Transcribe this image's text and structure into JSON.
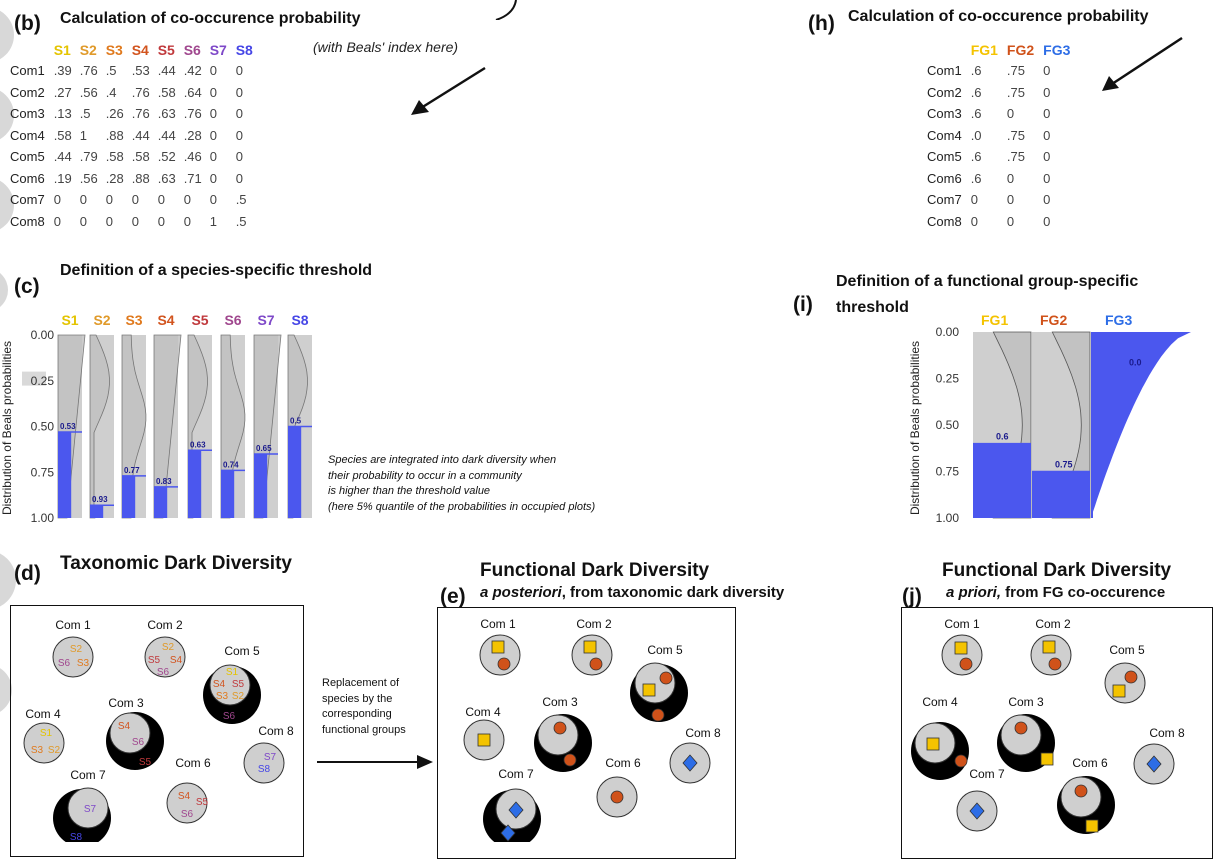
{
  "colors": {
    "S1": "#e4c400",
    "S2": "#e09a2a",
    "S3": "#e07a1e",
    "S4": "#d2541e",
    "S5": "#c0393c",
    "S6": "#a0478e",
    "S7": "#7e48c8",
    "S8": "#4646e6",
    "FG1": "#f4c300",
    "FG2": "#d0521a",
    "FG3": "#2d6de6",
    "dark": "#000000",
    "pool": "#cfcfcf",
    "blue": "#4b57ee"
  },
  "panel_b": {
    "label": "(b)",
    "title": "Calculation of co-occurence probability",
    "subtitle": "(with Beals' index here)",
    "species": [
      "S1",
      "S2",
      "S3",
      "S4",
      "S5",
      "S6",
      "S7",
      "S8"
    ],
    "rows": [
      {
        "name": "Com1",
        "values": [
          ".39",
          ".76",
          ".5",
          ".53",
          ".44",
          ".42",
          "0",
          "0"
        ]
      },
      {
        "name": "Com2",
        "values": [
          ".27",
          ".56",
          ".4",
          ".76",
          ".58",
          ".64",
          "0",
          "0"
        ]
      },
      {
        "name": "Com3",
        "values": [
          ".13",
          ".5",
          ".26",
          ".76",
          ".63",
          ".76",
          "0",
          "0"
        ]
      },
      {
        "name": "Com4",
        "values": [
          ".58",
          "1",
          ".88",
          ".44",
          ".44",
          ".28",
          "0",
          "0"
        ]
      },
      {
        "name": "Com5",
        "values": [
          ".44",
          ".79",
          ".58",
          ".58",
          ".52",
          ".46",
          "0",
          "0"
        ]
      },
      {
        "name": "Com6",
        "values": [
          ".19",
          ".56",
          ".28",
          ".88",
          ".63",
          ".71",
          "0",
          "0"
        ]
      },
      {
        "name": "Com7",
        "values": [
          "0",
          "0",
          "0",
          "0",
          "0",
          "0",
          "0",
          ".5"
        ]
      },
      {
        "name": "Com8",
        "values": [
          "0",
          "0",
          "0",
          "0",
          "0",
          "0",
          "1",
          ".5"
        ]
      }
    ]
  },
  "panel_h": {
    "label": "(h)",
    "title": "Calculation of co-occurence probability",
    "groups": [
      "FG1",
      "FG2",
      "FG3"
    ],
    "rows": [
      {
        "name": "Com1",
        "values": [
          ".6",
          ".75",
          "0"
        ]
      },
      {
        "name": "Com2",
        "values": [
          ".6",
          ".75",
          "0"
        ]
      },
      {
        "name": "Com3",
        "values": [
          ".6",
          "0",
          "0"
        ]
      },
      {
        "name": "Com4",
        "values": [
          ".0",
          ".75",
          "0"
        ]
      },
      {
        "name": "Com5",
        "values": [
          ".6",
          ".75",
          "0"
        ]
      },
      {
        "name": "Com6",
        "values": [
          ".6",
          "0",
          "0"
        ]
      },
      {
        "name": "Com7",
        "values": [
          "0",
          "0",
          "0"
        ]
      },
      {
        "name": "Com8",
        "values": [
          "0",
          "0",
          "0"
        ]
      }
    ]
  },
  "panel_c": {
    "label": "(c)",
    "title": "Definition of a species-specific threshold",
    "ylabel": "Distribution of Beals probabilities",
    "ticks": [
      "0.00",
      "0.25",
      "0.50",
      "0.75",
      "1.00"
    ],
    "thresholds": [
      0.53,
      0.93,
      0.77,
      0.83,
      0.63,
      0.74,
      0.65,
      0.5
    ],
    "threshold_labels": [
      "0.53",
      "0.93",
      "0.77",
      "0.83",
      "0.63",
      "0.74",
      "0.65",
      "0.5"
    ],
    "note": [
      "Species are integrated into dark diversity when",
      "their probability to occur in a community",
      "is higher than the threshold value",
      "(here 5% quantile of the probabilities in occupied plots)"
    ]
  },
  "panel_i": {
    "label": "(i)",
    "title_line1": "Definition of a functional group-specific",
    "title_line2": "threshold",
    "ylabel": "Distribution of Beals probabilities",
    "ticks": [
      "0.00",
      "0.25",
      "0.50",
      "0.75",
      "1.00"
    ],
    "thresholds": [
      0.6,
      0.75,
      0.0
    ],
    "threshold_labels": [
      "0.6",
      "0.75",
      "0.0"
    ]
  },
  "panel_d": {
    "label": "(d)",
    "title": "Taxonomic Dark Diversity"
  },
  "panel_e": {
    "label": "(e)",
    "title": "Functional Dark Diversity",
    "subtitle_em": "a posteriori",
    "subtitle_rest": ", from taxonomic dark diversity"
  },
  "panel_j": {
    "label": "(j)",
    "title": "Functional Dark Diversity",
    "subtitle_em": "a priori,",
    "subtitle_rest": " from FG co-occurence"
  },
  "arrow_text": [
    "Replacement of",
    "species by the",
    "corresponding",
    "functional groups"
  ],
  "com_labels": {
    "c1": "Com 1",
    "c2": "Com 2",
    "c3": "Com 3",
    "c4": "Com 4",
    "c5": "Com 5",
    "c6": "Com 6",
    "c7": "Com 7",
    "c8": "Com 8"
  }
}
